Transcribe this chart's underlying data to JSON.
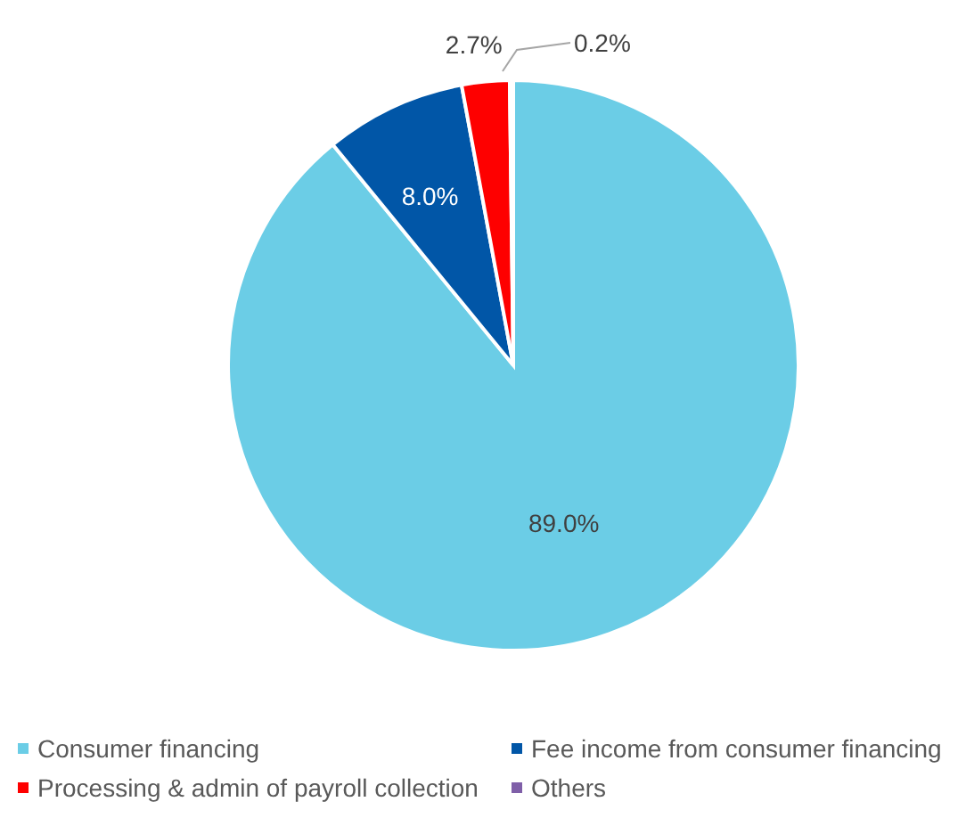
{
  "chart_data": {
    "type": "pie",
    "categories": [
      "Consumer financing",
      "Fee income from consumer financing",
      "Processing & admin of payroll collection",
      "Others"
    ],
    "values": [
      89.0,
      8.0,
      2.7,
      0.2
    ],
    "colors": [
      "#6bcde6",
      "#0156a7",
      "#fe0000",
      "#7f5fa8"
    ],
    "value_labels": [
      "89.0%",
      "8.0%",
      "2.7%",
      "0.2%"
    ],
    "legend": "bottom"
  }
}
